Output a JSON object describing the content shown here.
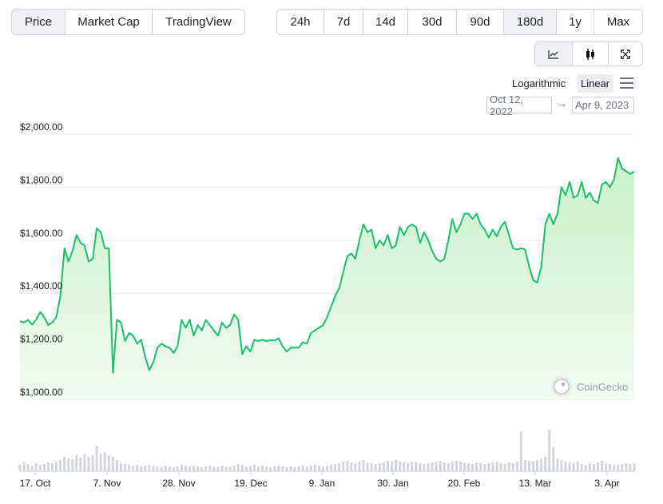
{
  "tabs": {
    "price": "Price",
    "market_cap": "Market Cap",
    "tradingview": "TradingView"
  },
  "ranges": [
    "24h",
    "7d",
    "14d",
    "30d",
    "90d",
    "180d",
    "1y",
    "Max"
  ],
  "active_range": "180d",
  "chart_type_icons": [
    "line-chart-icon",
    "candlestick-icon",
    "expand-icon"
  ],
  "scale_options": {
    "log": "Logarithmic",
    "linear": "Linear",
    "active": "Linear"
  },
  "date_range": {
    "from": "Oct 12, 2022",
    "to": "Apr 9, 2023",
    "arrow": "→"
  },
  "watermark": "CoinGecko",
  "colors": {
    "line": "#17c26b",
    "fill_top": "#c9efc9",
    "fill_bottom": "#f2fbf2",
    "volume": "#d3d6da",
    "grid": "#eceef0"
  },
  "chart_data": {
    "type": "line",
    "ylim": [
      1000,
      2000
    ],
    "y_tick_labels": [
      "$1,000.00",
      "$1,200.00",
      "$1,400.00",
      "$1,600.00",
      "$1,800.00",
      "$2,000.00"
    ],
    "y_ticks": [
      1000,
      1200,
      1400,
      1600,
      1800,
      2000
    ],
    "x_tick_labels": [
      "17. Oct",
      "7. Nov",
      "28. Nov",
      "19. Dec",
      "9. Jan",
      "30. Jan",
      "20. Feb",
      "13. Mar",
      "3. Apr"
    ],
    "series": [
      {
        "values": [
          1295,
          1290,
          1300,
          1282,
          1300,
          1330,
          1310,
          1280,
          1290,
          1310,
          1390,
          1570,
          1520,
          1560,
          1620,
          1590,
          1580,
          1520,
          1530,
          1645,
          1630,
          1570,
          1570,
          1100,
          1300,
          1290,
          1220,
          1250,
          1240,
          1210,
          1225,
          1160,
          1110,
          1140,
          1195,
          1210,
          1200,
          1195,
          1175,
          1200,
          1300,
          1270,
          1300,
          1240,
          1280,
          1260,
          1300,
          1280,
          1260,
          1240,
          1290,
          1270,
          1280,
          1320,
          1300,
          1170,
          1200,
          1180,
          1225,
          1220,
          1225,
          1220,
          1223,
          1222,
          1230,
          1200,
          1180,
          1195,
          1195,
          1195,
          1215,
          1210,
          1250,
          1260,
          1270,
          1280,
          1310,
          1350,
          1390,
          1420,
          1480,
          1540,
          1550,
          1530,
          1600,
          1660,
          1630,
          1640,
          1570,
          1600,
          1580,
          1620,
          1570,
          1580,
          1650,
          1620,
          1650,
          1660,
          1650,
          1590,
          1630,
          1600,
          1560,
          1530,
          1520,
          1530,
          1600,
          1680,
          1630,
          1660,
          1700,
          1700,
          1680,
          1700,
          1660,
          1640,
          1610,
          1640,
          1615,
          1650,
          1670,
          1620,
          1570,
          1565,
          1570,
          1565,
          1500,
          1450,
          1440,
          1500,
          1660,
          1700,
          1660,
          1700,
          1800,
          1770,
          1820,
          1760,
          1770,
          1820,
          1760,
          1780,
          1750,
          1740,
          1810,
          1820,
          1800,
          1830,
          1910,
          1870,
          1860,
          1850,
          1860
        ]
      },
      {
        "name": "Volume",
        "values": [
          8,
          12,
          9,
          7,
          10,
          8,
          9,
          11,
          10,
          12,
          14,
          18,
          16,
          15,
          20,
          17,
          22,
          18,
          20,
          32,
          22,
          24,
          20,
          18,
          14,
          10,
          9,
          8,
          7,
          8,
          6,
          7,
          8,
          7,
          6,
          5,
          7,
          6,
          5,
          6,
          8,
          7,
          6,
          7,
          6,
          5,
          6,
          7,
          6,
          5,
          7,
          6,
          6,
          7,
          9,
          8,
          6,
          7,
          8,
          6,
          7,
          6,
          5,
          6,
          7,
          6,
          5,
          6,
          5,
          6,
          7,
          6,
          7,
          8,
          7,
          6,
          7,
          8,
          9,
          10,
          12,
          13,
          11,
          10,
          12,
          14,
          11,
          10,
          9,
          10,
          11,
          13,
          12,
          14,
          12,
          11,
          10,
          12,
          11,
          10,
          9,
          10,
          11,
          12,
          13,
          11,
          10,
          12,
          13,
          12,
          11,
          10,
          9,
          11,
          10,
          9,
          10,
          11,
          12,
          10,
          9,
          11,
          10,
          12,
          50,
          14,
          13,
          12,
          14,
          16,
          18,
          52,
          30,
          16,
          14,
          12,
          11,
          10,
          12,
          9,
          8,
          10,
          9,
          11,
          13,
          10,
          9,
          8,
          8,
          9,
          10,
          9,
          10
        ]
      }
    ]
  }
}
